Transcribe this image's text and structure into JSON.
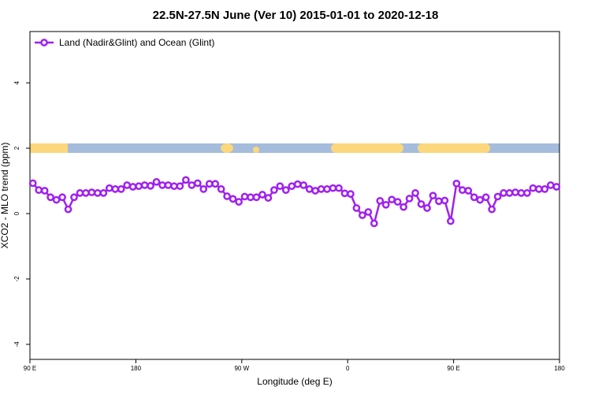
{
  "chart_data": {
    "type": "line",
    "title": "22.5N-27.5N June (Ver 10)   2015-01-01 to 2020-12-18",
    "x_label": "Longitude (deg E)",
    "y_label": "XCO2 - MLO trend (ppm)",
    "x": [
      92.5,
      97.5,
      102.5,
      107.5,
      112.5,
      117.5,
      122.5,
      127.5,
      132.5,
      137.5,
      142.5,
      147.5,
      152.5,
      157.5,
      162.5,
      167.5,
      172.5,
      177.5,
      182.5,
      187.5,
      192.5,
      197.5,
      202.5,
      207.5,
      212.5,
      217.5,
      222.5,
      227.5,
      232.5,
      237.5,
      242.5,
      247.5,
      252.5,
      257.5,
      262.5,
      267.5,
      272.5,
      277.5,
      282.5,
      287.5,
      292.5,
      297.5,
      302.5,
      307.5,
      312.5,
      317.5,
      322.5,
      327.5,
      332.5,
      337.5,
      342.5,
      347.5,
      352.5,
      357.5,
      362.5,
      367.5,
      372.5,
      377.5,
      382.5,
      387.5,
      392.5,
      397.5,
      402.5,
      407.5,
      412.5,
      417.5,
      422.5,
      427.5,
      432.5,
      437.5,
      442.5,
      447.5,
      452.5,
      457.5,
      462.5,
      467.5,
      472.5,
      477.5,
      482.5,
      487.5,
      492.5,
      497.5,
      502.5,
      507.5,
      512.5,
      517.5,
      522.5,
      527.5,
      532.5,
      537.5
    ],
    "series": [
      {
        "name": "Land (Nadir&Glint) and Ocean (Glint)",
        "color": "#a020f0",
        "values": [
          0.93,
          0.72,
          0.7,
          0.5,
          0.42,
          0.5,
          0.13,
          0.5,
          0.63,
          0.63,
          0.65,
          0.63,
          0.63,
          0.78,
          0.75,
          0.75,
          0.87,
          0.82,
          0.84,
          0.87,
          0.85,
          0.97,
          0.87,
          0.87,
          0.84,
          0.84,
          1.03,
          0.87,
          0.93,
          0.75,
          0.91,
          0.91,
          0.75,
          0.53,
          0.45,
          0.36,
          0.52,
          0.5,
          0.5,
          0.58,
          0.48,
          0.72,
          0.84,
          0.72,
          0.84,
          0.9,
          0.87,
          0.75,
          0.7,
          0.75,
          0.75,
          0.78,
          0.78,
          0.62,
          0.6,
          0.17,
          -0.05,
          0.05,
          -0.3,
          0.39,
          0.27,
          0.43,
          0.36,
          0.2,
          0.46,
          0.63,
          0.29,
          0.17,
          0.55,
          0.38,
          0.4,
          -0.23,
          0.92,
          0.72,
          0.7,
          0.5,
          0.42,
          0.5,
          0.13,
          0.52,
          0.63,
          0.63,
          0.65,
          0.63,
          0.63,
          0.78,
          0.75,
          0.75,
          0.87,
          0.82
        ]
      }
    ],
    "xlim": [
      90,
      540
    ],
    "xticks": [
      {
        "value": 90,
        "label": "90 E"
      },
      {
        "value": 180,
        "label": "180"
      },
      {
        "value": 270,
        "label": "90 W"
      },
      {
        "value": 360,
        "label": "0"
      },
      {
        "value": 450,
        "label": "90 E"
      },
      {
        "value": 540,
        "label": "180"
      }
    ],
    "ylim": [
      -4.46,
      5.57
    ],
    "yticks": [
      -4,
      -2,
      0,
      2,
      4
    ],
    "legend": "top-left"
  }
}
